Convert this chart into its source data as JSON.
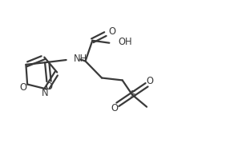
{
  "bg_color": "#ffffff",
  "line_color": "#3a3a3a",
  "line_width": 1.6,
  "font_size": 7.8,
  "fig_width": 2.92,
  "fig_height": 1.84,
  "dpi": 100,
  "xlim": [
    0,
    10
  ],
  "ylim": [
    0,
    6.3
  ]
}
